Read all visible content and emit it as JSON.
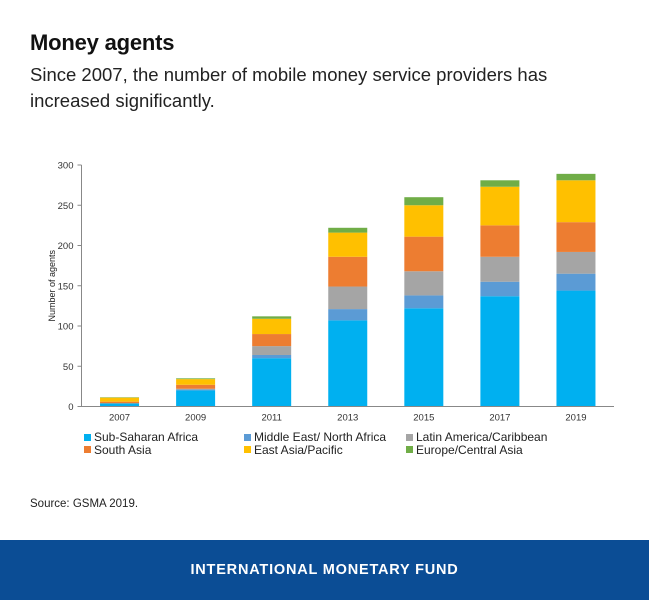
{
  "header": {
    "title": "Money agents",
    "subtitle": "Since 2007, the number of mobile money service providers has increased significantly."
  },
  "chart_data": {
    "type": "bar",
    "stacked": true,
    "title": "Money agents",
    "xlabel": "",
    "ylabel": "Number of agents",
    "ylim": [
      0,
      300
    ],
    "yticks": [
      0,
      50,
      100,
      150,
      200,
      250,
      300
    ],
    "grid": false,
    "legend_position": "bottom",
    "categories": [
      "2007",
      "2009",
      "2011",
      "2013",
      "2015",
      "2017",
      "2019"
    ],
    "series": [
      {
        "name": "Sub-Saharan Africa",
        "color": "#00B0F0",
        "values": [
          4,
          20,
          60,
          107,
          122,
          137,
          144
        ]
      },
      {
        "name": "Middle East/ North Africa",
        "color": "#5B9BD5",
        "values": [
          0,
          1,
          4,
          14,
          16,
          18,
          21
        ]
      },
      {
        "name": "Latin America/Caribbean",
        "color": "#A5A5A5",
        "values": [
          0,
          1,
          11,
          28,
          30,
          31,
          27
        ]
      },
      {
        "name": "South Asia",
        "color": "#ED7D31",
        "values": [
          2,
          5,
          15,
          37,
          43,
          39,
          37
        ]
      },
      {
        "name": "East Asia/Pacific",
        "color": "#FFC000",
        "values": [
          5,
          7,
          19,
          30,
          39,
          48,
          52
        ]
      },
      {
        "name": "Europe/Central Asia",
        "color": "#70AD47",
        "values": [
          0.5,
          1,
          3,
          6,
          10,
          8,
          8
        ]
      }
    ]
  },
  "source": "Source:  GSMA 2019.",
  "footer": {
    "org_name": "INTERNATIONAL MONETARY FUND",
    "background": "#0B4D95"
  }
}
